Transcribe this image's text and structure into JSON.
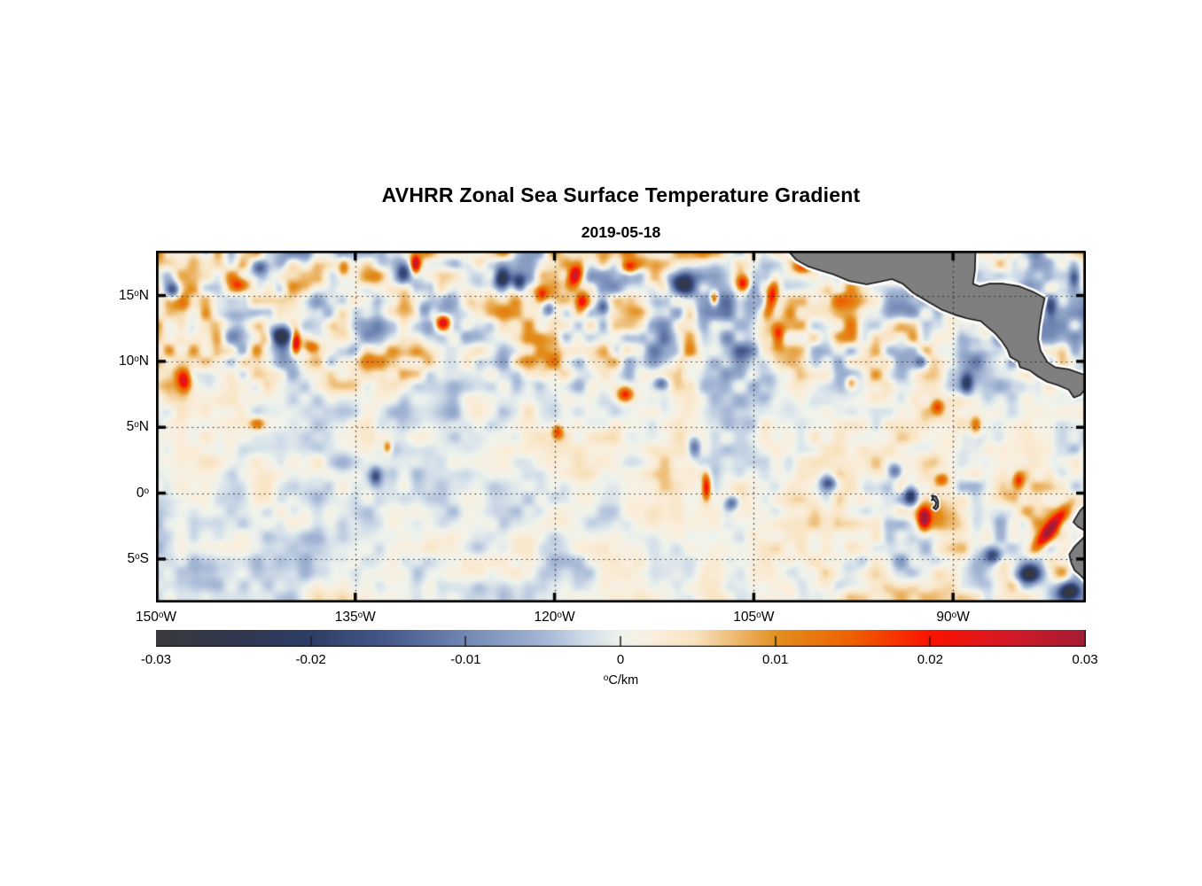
{
  "deg_symbol": "o",
  "chart_data": {
    "type": "heatmap",
    "title": "AVHRR Zonal Sea Surface Temperature Gradient",
    "date": "2019-05-18",
    "projection": "equirectangular",
    "lon_range": [
      -150,
      -80
    ],
    "lat_range": [
      -8.3,
      18.4
    ],
    "x_ticks": [
      {
        "lon": -150,
        "deg": "150",
        "hem": "W"
      },
      {
        "lon": -135,
        "deg": "135",
        "hem": "W"
      },
      {
        "lon": -120,
        "deg": "120",
        "hem": "W"
      },
      {
        "lon": -105,
        "deg": "105",
        "hem": "W"
      },
      {
        "lon": -90,
        "deg": "90",
        "hem": "W"
      }
    ],
    "y_ticks": [
      {
        "lat": 15,
        "deg": "15",
        "hem": "N"
      },
      {
        "lat": 10,
        "deg": "10",
        "hem": "N"
      },
      {
        "lat": 5,
        "deg": "5",
        "hem": "N"
      },
      {
        "lat": 0,
        "deg": "0",
        "hem": ""
      },
      {
        "lat": -5,
        "deg": "5",
        "hem": "S"
      }
    ],
    "grid": {
      "style": "dotted",
      "color": "rgba(35,35,35,0.95)",
      "lons": [
        -135,
        -120,
        -105,
        -90
      ],
      "lats": [
        15,
        10,
        5,
        0,
        -5
      ]
    },
    "frame_color": "#000000",
    "colorbar": {
      "min": -0.03,
      "max": 0.03,
      "tick_labels": [
        "-0.03",
        "-0.02",
        "-0.01",
        "0",
        "0.01",
        "0.02",
        "0.03"
      ],
      "tick_values": [
        -0.03,
        -0.02,
        -0.01,
        0,
        0.01,
        0.02,
        0.03
      ],
      "interior_tick_values": [
        -0.02,
        -0.01,
        0,
        0.01,
        0.02
      ],
      "units_deg": "o",
      "units_text": "C/km",
      "colormap": [
        [
          0.0,
          "#3a3a3c"
        ],
        [
          0.09,
          "#313750"
        ],
        [
          0.167,
          "#2c3e66"
        ],
        [
          0.25,
          "#47598c"
        ],
        [
          0.333,
          "#7288b4"
        ],
        [
          0.42,
          "#a6b8d6"
        ],
        [
          0.465,
          "#d3dfe9"
        ],
        [
          0.5,
          "#eff3ec"
        ],
        [
          0.535,
          "#f9eedd"
        ],
        [
          0.58,
          "#f8e3c0"
        ],
        [
          0.667,
          "#e2901f"
        ],
        [
          0.75,
          "#ee5f00"
        ],
        [
          0.833,
          "#fc1200"
        ],
        [
          0.92,
          "#d31a28"
        ],
        [
          1.0,
          "#a41c34"
        ]
      ]
    },
    "land": {
      "color": "#7f7f7f",
      "outline": "#141414",
      "halo": "#ffffff",
      "masses": [
        {
          "name": "mexico-central-america",
          "halo_w": 7,
          "points": [
            [
              -102.6,
              18.6
            ],
            [
              -101.8,
              17.7
            ],
            [
              -100.9,
              17.2
            ],
            [
              -100.0,
              16.9
            ],
            [
              -99.0,
              16.6
            ],
            [
              -97.8,
              16.1
            ],
            [
              -96.5,
              15.85
            ],
            [
              -95.5,
              16.05
            ],
            [
              -94.6,
              16.25
            ],
            [
              -93.8,
              15.9
            ],
            [
              -93.0,
              15.2
            ],
            [
              -92.0,
              14.6
            ],
            [
              -90.9,
              13.95
            ],
            [
              -89.9,
              13.55
            ],
            [
              -88.9,
              13.25
            ],
            [
              -87.9,
              13.05
            ],
            [
              -87.4,
              12.6
            ],
            [
              -86.8,
              12.1
            ],
            [
              -86.3,
              11.5
            ],
            [
              -85.9,
              10.9
            ],
            [
              -85.7,
              10.35
            ],
            [
              -85.1,
              10.0
            ],
            [
              -84.95,
              9.55
            ],
            [
              -84.2,
              9.3
            ],
            [
              -83.6,
              8.85
            ],
            [
              -82.9,
              8.45
            ],
            [
              -82.1,
              8.2
            ],
            [
              -81.3,
              7.85
            ],
            [
              -80.9,
              7.25
            ],
            [
              -80.4,
              7.45
            ],
            [
              -79.9,
              8.1
            ],
            [
              -79.6,
              8.9
            ],
            [
              -80.3,
              9.05
            ],
            [
              -81.3,
              9.4
            ],
            [
              -82.3,
              9.55
            ],
            [
              -82.9,
              9.95
            ],
            [
              -83.4,
              10.8
            ],
            [
              -83.6,
              11.7
            ],
            [
              -83.5,
              12.7
            ],
            [
              -83.3,
              13.9
            ],
            [
              -83.1,
              14.8
            ],
            [
              -83.9,
              15.25
            ],
            [
              -85.0,
              15.7
            ],
            [
              -86.2,
              15.9
            ],
            [
              -87.3,
              15.9
            ],
            [
              -88.0,
              15.7
            ],
            [
              -88.5,
              15.9
            ],
            [
              -88.35,
              16.9
            ],
            [
              -88.3,
              18.6
            ]
          ]
        },
        {
          "name": "south-america",
          "halo_w": 7,
          "points": [
            [
              -79.5,
              -0.3
            ],
            [
              -80.0,
              -0.85
            ],
            [
              -80.45,
              -1.35
            ],
            [
              -80.75,
              -1.85
            ],
            [
              -80.95,
              -2.2
            ],
            [
              -80.6,
              -2.55
            ],
            [
              -80.15,
              -2.8
            ],
            [
              -79.85,
              -3.05
            ],
            [
              -80.25,
              -3.45
            ],
            [
              -80.85,
              -4.05
            ],
            [
              -81.25,
              -4.65
            ],
            [
              -81.1,
              -5.3
            ],
            [
              -80.85,
              -5.85
            ],
            [
              -80.35,
              -6.3
            ],
            [
              -79.95,
              -6.75
            ],
            [
              -79.6,
              -7.4
            ],
            [
              -79.4,
              -8.6
            ],
            [
              -78.5,
              -8.6
            ],
            [
              -78.5,
              -0.3
            ]
          ]
        },
        {
          "name": "galapagos-islands",
          "halo_w": 5,
          "points": [
            [
              -91.62,
              -0.18
            ],
            [
              -91.28,
              -0.25
            ],
            [
              -91.12,
              -0.6
            ],
            [
              -91.12,
              -1.05
            ],
            [
              -91.3,
              -1.25
            ],
            [
              -91.5,
              -1.1
            ],
            [
              -91.33,
              -0.95
            ],
            [
              -91.28,
              -0.7
            ],
            [
              -91.45,
              -0.5
            ],
            [
              -91.62,
              -0.55
            ],
            [
              -91.52,
              -0.35
            ]
          ]
        }
      ]
    },
    "field": {
      "noise_seed": 7,
      "noise_scales": [
        30,
        14
      ],
      "noise_weights": [
        0.6,
        0.4
      ],
      "lowfreq_scale": 110,
      "lowfreq_amp": 0.1,
      "base_amp": 0.2,
      "north_amp_boost": 0.33,
      "east_amp_boost": 0.16,
      "features": [
        {
          "lon": -140.7,
          "lat": 12.0,
          "v": -0.85,
          "rx": 0.9,
          "ry": 0.75,
          "rot": 0
        },
        {
          "lon": -139.5,
          "lat": 11.5,
          "v": 0.95,
          "rx": 0.33,
          "ry": 0.85,
          "rot": 0
        },
        {
          "lon": -138.4,
          "lat": 11.1,
          "v": 0.5,
          "rx": 0.7,
          "ry": 0.5,
          "rot": 0
        },
        {
          "lon": -143.7,
          "lat": 15.8,
          "v": 0.55,
          "rx": 0.8,
          "ry": 0.55,
          "rot": 0
        },
        {
          "lon": -148.7,
          "lat": 15.4,
          "v": -0.6,
          "rx": 0.55,
          "ry": 0.7,
          "rot": 0
        },
        {
          "lon": -142.3,
          "lat": 17.2,
          "v": -0.5,
          "rx": 0.6,
          "ry": 0.6,
          "rot": 0
        },
        {
          "lon": -135.9,
          "lat": 17.2,
          "v": 0.5,
          "rx": 0.5,
          "ry": 0.7,
          "rot": 0
        },
        {
          "lon": -131.4,
          "lat": 16.7,
          "v": -0.65,
          "rx": 0.55,
          "ry": 0.75,
          "rot": 0
        },
        {
          "lon": -130.5,
          "lat": 17.4,
          "v": 0.85,
          "rx": 0.35,
          "ry": 0.7,
          "rot": 0
        },
        {
          "lon": -128.4,
          "lat": 13.0,
          "v": 0.9,
          "rx": 0.55,
          "ry": 0.6,
          "rot": 0
        },
        {
          "lon": -129.8,
          "lat": 13.9,
          "v": -0.5,
          "rx": 0.6,
          "ry": 0.6,
          "rot": 0
        },
        {
          "lon": -124.0,
          "lat": 16.2,
          "v": -0.7,
          "rx": 0.6,
          "ry": 0.95,
          "rot": 0
        },
        {
          "lon": -122.7,
          "lat": 15.9,
          "v": -0.6,
          "rx": 0.5,
          "ry": 0.65,
          "rot": 0
        },
        {
          "lon": -121.0,
          "lat": 15.2,
          "v": 0.5,
          "rx": 0.5,
          "ry": 0.6,
          "rot": 0
        },
        {
          "lon": -120.4,
          "lat": 14.0,
          "v": -0.55,
          "rx": 0.5,
          "ry": 0.6,
          "rot": 0
        },
        {
          "lon": -118.5,
          "lat": 16.6,
          "v": 0.85,
          "rx": 0.55,
          "ry": 1.1,
          "rot": 20
        },
        {
          "lon": -118.0,
          "lat": 14.6,
          "v": 0.8,
          "rx": 0.5,
          "ry": 0.65,
          "rot": 0
        },
        {
          "lon": -116.4,
          "lat": 14.2,
          "v": -0.6,
          "rx": 0.5,
          "ry": 0.7,
          "rot": 0
        },
        {
          "lon": -114.4,
          "lat": 17.2,
          "v": 0.6,
          "rx": 0.6,
          "ry": 0.55,
          "rot": 0
        },
        {
          "lon": -110.5,
          "lat": 15.9,
          "v": -0.85,
          "rx": 1.05,
          "ry": 0.8,
          "rot": 25
        },
        {
          "lon": -108.0,
          "lat": 14.8,
          "v": 0.8,
          "rx": 0.33,
          "ry": 0.55,
          "rot": 0
        },
        {
          "lon": -105.8,
          "lat": 15.9,
          "v": 0.6,
          "rx": 0.5,
          "ry": 0.6,
          "rot": 0
        },
        {
          "lon": -103.7,
          "lat": 14.9,
          "v": 0.75,
          "rx": 0.45,
          "ry": 1.35,
          "rot": 12
        },
        {
          "lon": -103.2,
          "lat": 12.0,
          "v": 0.6,
          "rx": 0.45,
          "ry": 0.8,
          "rot": 0
        },
        {
          "lon": -101.4,
          "lat": 17.2,
          "v": 0.6,
          "rx": 0.7,
          "ry": 0.5,
          "rot": 0
        },
        {
          "lon": -114.7,
          "lat": 7.5,
          "v": 0.7,
          "rx": 0.65,
          "ry": 0.6,
          "rot": 0
        },
        {
          "lon": -112.0,
          "lat": 8.4,
          "v": -0.5,
          "rx": 0.55,
          "ry": 0.5,
          "rot": 0
        },
        {
          "lon": -109.5,
          "lat": 3.5,
          "v": -0.55,
          "rx": 0.5,
          "ry": 0.75,
          "rot": 0
        },
        {
          "lon": -108.6,
          "lat": 0.5,
          "v": 0.75,
          "rx": 0.33,
          "ry": 0.95,
          "rot": 0
        },
        {
          "lon": -106.7,
          "lat": -0.7,
          "v": -0.5,
          "rx": 0.55,
          "ry": 0.5,
          "rot": -35
        },
        {
          "lon": -99.4,
          "lat": 0.8,
          "v": -0.45,
          "rx": 0.6,
          "ry": 0.5,
          "rot": 0
        },
        {
          "lon": -94.4,
          "lat": 1.7,
          "v": -0.5,
          "rx": 0.55,
          "ry": 0.55,
          "rot": 0
        },
        {
          "lon": -93.2,
          "lat": -0.2,
          "v": -0.7,
          "rx": 0.5,
          "ry": 0.7,
          "rot": 0
        },
        {
          "lon": -92.2,
          "lat": -1.9,
          "v": 0.9,
          "rx": 0.45,
          "ry": 0.8,
          "rot": 0
        },
        {
          "lon": -90.9,
          "lat": 1.1,
          "v": 0.5,
          "rx": 0.5,
          "ry": 0.5,
          "rot": 0
        },
        {
          "lon": -89.0,
          "lat": 8.4,
          "v": -0.6,
          "rx": 0.5,
          "ry": 0.8,
          "rot": 0
        },
        {
          "lon": -92.4,
          "lat": 10.0,
          "v": -0.5,
          "rx": 0.5,
          "ry": 0.55,
          "rot": 0
        },
        {
          "lon": -91.2,
          "lat": 6.6,
          "v": 0.45,
          "rx": 0.45,
          "ry": 0.55,
          "rot": 0
        },
        {
          "lon": -88.3,
          "lat": 5.2,
          "v": 0.5,
          "rx": 0.45,
          "ry": 0.7,
          "rot": 0
        },
        {
          "lon": -82.7,
          "lat": -2.7,
          "v": 0.95,
          "rx": 0.5,
          "ry": 1.9,
          "rot": 38
        },
        {
          "lon": -84.3,
          "lat": -6.1,
          "v": -0.8,
          "rx": 0.85,
          "ry": 0.65,
          "rot": 0
        },
        {
          "lon": -81.3,
          "lat": -7.4,
          "v": -0.85,
          "rx": 0.8,
          "ry": 0.7,
          "rot": 0
        },
        {
          "lon": -87.0,
          "lat": -4.7,
          "v": -0.6,
          "rx": 0.7,
          "ry": 0.6,
          "rot": 0
        },
        {
          "lon": -85.1,
          "lat": 1.0,
          "v": 0.5,
          "rx": 0.4,
          "ry": 0.6,
          "rot": 0
        },
        {
          "lon": -80.9,
          "lat": 16.4,
          "v": -0.5,
          "rx": 0.4,
          "ry": 0.7,
          "rot": 0
        },
        {
          "lon": -85.0,
          "lat": 11.2,
          "v": -0.55,
          "rx": 0.5,
          "ry": 0.8,
          "rot": 0
        },
        {
          "lon": -82.7,
          "lat": 13.9,
          "v": -0.5,
          "rx": 0.45,
          "ry": 0.7,
          "rot": 0
        },
        {
          "lon": -80.8,
          "lat": 8.2,
          "v": -0.65,
          "rx": 0.4,
          "ry": 0.9,
          "rot": 0
        },
        {
          "lon": -97.7,
          "lat": 8.4,
          "v": 0.5,
          "rx": 0.45,
          "ry": 0.55,
          "rot": 0
        },
        {
          "lon": -147.9,
          "lat": 8.5,
          "v": 0.55,
          "rx": 0.5,
          "ry": 0.75,
          "rot": 0
        },
        {
          "lon": -142.4,
          "lat": 5.3,
          "v": 0.45,
          "rx": 0.6,
          "ry": 0.5,
          "rot": 0
        },
        {
          "lon": -119.8,
          "lat": 4.7,
          "v": 0.5,
          "rx": 0.4,
          "ry": 0.55,
          "rot": 0
        },
        {
          "lon": -133.5,
          "lat": 1.3,
          "v": -0.5,
          "rx": 0.45,
          "ry": 0.65,
          "rot": 0
        },
        {
          "lon": -132.6,
          "lat": 3.5,
          "v": 0.45,
          "rx": 0.35,
          "ry": 0.5,
          "rot": 0
        }
      ]
    }
  },
  "layout_note": "AVHRR zonal SST gradient map, tropical East Pacific, MATLAB-style figure"
}
